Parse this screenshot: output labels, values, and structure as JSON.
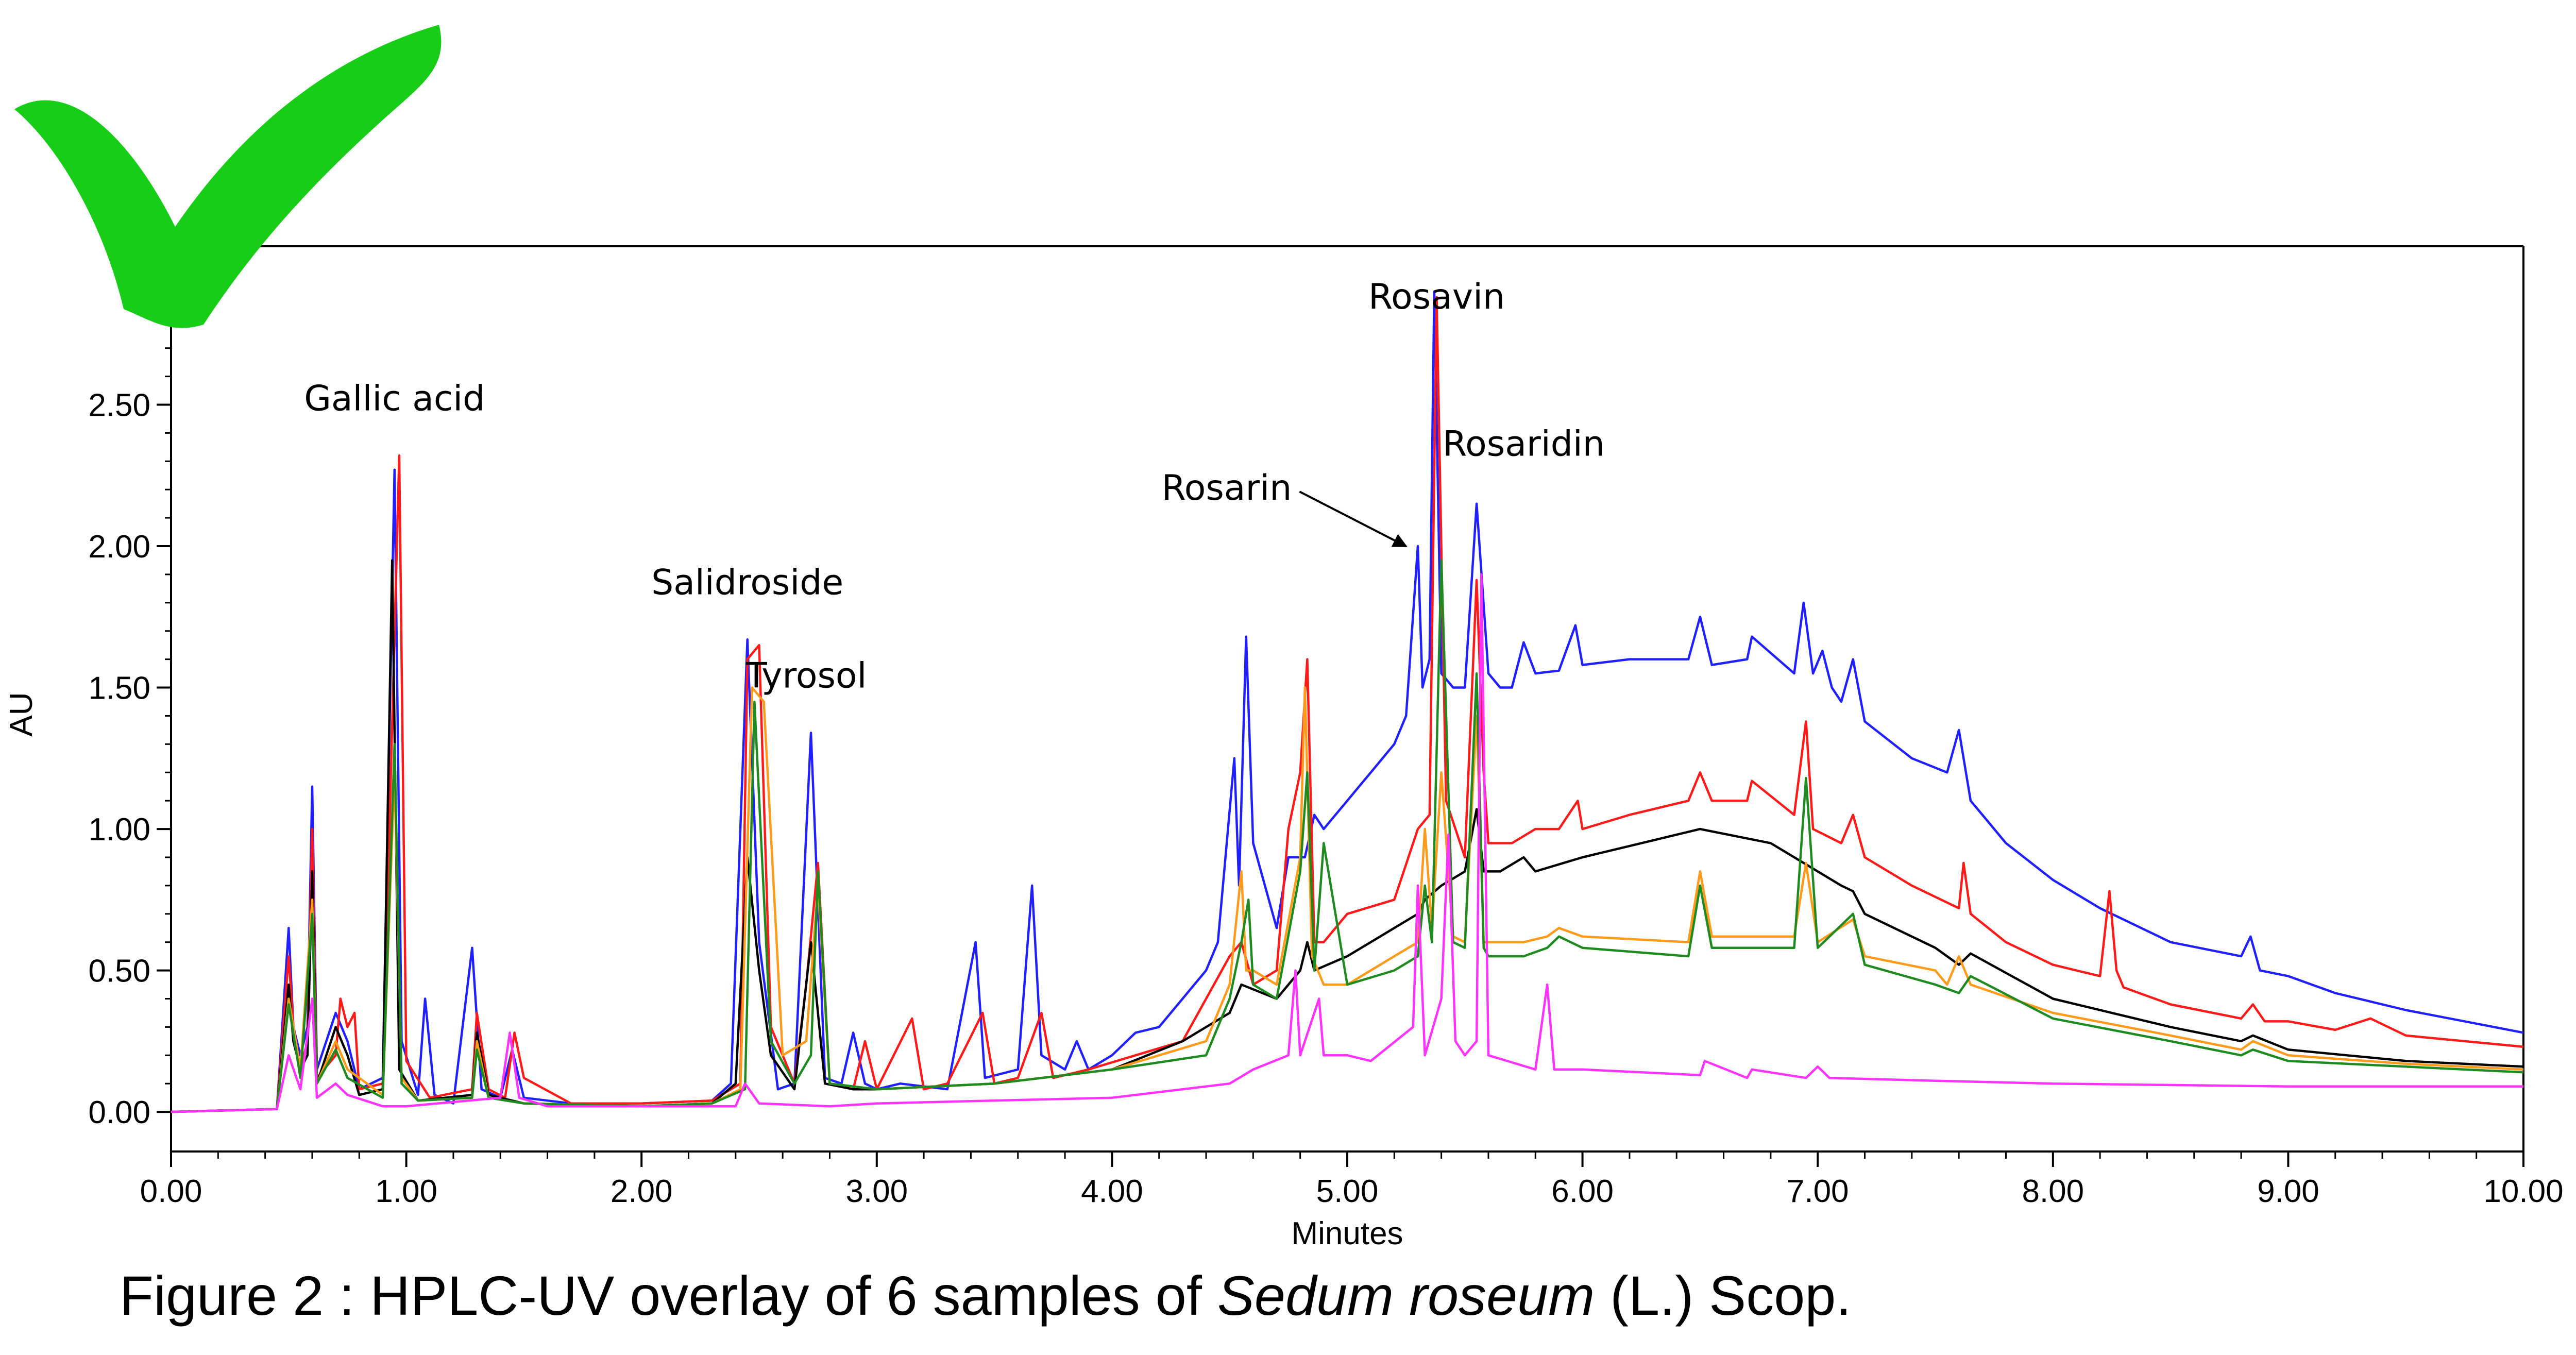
{
  "caption": {
    "prefix": "Figure 2 : HPLC-UV overlay of 6 samples of ",
    "species": "Sedum roseum",
    "suffix": " (L.) Scop."
  },
  "colors": {
    "checkmark": "#17cd17",
    "axis": "#000000",
    "arrow": "#000000"
  },
  "icons": {
    "checkmark": "checkmark-icon"
  },
  "chart_data": {
    "type": "line",
    "title": "",
    "xlabel": "Minutes",
    "ylabel": "AU",
    "xlim": [
      0,
      10
    ],
    "ylim": [
      -0.14,
      3.06
    ],
    "grid": false,
    "legend": "none",
    "x_ticks": [
      "0.00",
      "1.00",
      "2.00",
      "3.00",
      "4.00",
      "5.00",
      "6.00",
      "7.00",
      "8.00",
      "9.00",
      "10.00"
    ],
    "y_ticks": [
      "0.00",
      "0.50",
      "1.00",
      "1.50",
      "2.00",
      "2.50"
    ],
    "annotations": [
      {
        "text": "Gallic acid",
        "x": 0.95,
        "y": 2.48
      },
      {
        "text": "Salidroside",
        "x": 2.45,
        "y": 1.83
      },
      {
        "text": "Tyrosol",
        "x": 2.7,
        "y": 1.5
      },
      {
        "text": "Rosarin",
        "x": 5.29,
        "y": 2.2,
        "arrow_to": [
          5.29,
          2.01
        ]
      },
      {
        "text": "Rosavin",
        "x": 5.38,
        "y": 2.84
      },
      {
        "text": "Rosaridin",
        "x": 5.75,
        "y": 2.32
      }
    ],
    "series": [
      {
        "color": "#2020ff",
        "x": [
          0,
          0.45,
          0.5,
          0.52,
          0.55,
          0.58,
          0.6,
          0.62,
          0.7,
          0.75,
          0.8,
          0.9,
          0.95,
          0.98,
          1.05,
          1.08,
          1.12,
          1.2,
          1.28,
          1.32,
          1.4,
          1.45,
          1.5,
          1.7,
          2.0,
          2.3,
          2.38,
          2.45,
          2.5,
          2.58,
          2.65,
          2.72,
          2.78,
          2.85,
          2.9,
          2.95,
          3.0,
          3.1,
          3.3,
          3.42,
          3.46,
          3.6,
          3.66,
          3.7,
          3.8,
          3.85,
          3.9,
          4.0,
          4.1,
          4.2,
          4.4,
          4.45,
          4.52,
          4.54,
          4.57,
          4.6,
          4.7,
          4.75,
          4.82,
          4.86,
          4.9,
          5.0,
          5.1,
          5.2,
          5.25,
          5.3,
          5.32,
          5.35,
          5.37,
          5.4,
          5.45,
          5.5,
          5.55,
          5.6,
          5.65,
          5.7,
          5.75,
          5.8,
          5.9,
          5.97,
          6.0,
          6.2,
          6.45,
          6.5,
          6.55,
          6.7,
          6.72,
          6.9,
          6.94,
          6.98,
          7.02,
          7.06,
          7.1,
          7.15,
          7.2,
          7.4,
          7.55,
          7.6,
          7.65,
          7.8,
          8.0,
          8.2,
          8.5,
          8.8,
          8.84,
          8.88,
          9.0,
          9.2,
          9.5,
          10.0
        ],
        "y": [
          0,
          0.01,
          0.65,
          0.3,
          0.2,
          0.3,
          1.15,
          0.15,
          0.35,
          0.25,
          0.08,
          0.12,
          2.27,
          0.25,
          0.06,
          0.4,
          0.06,
          0.03,
          0.58,
          0.08,
          0.05,
          0.22,
          0.05,
          0.03,
          0.03,
          0.04,
          0.1,
          1.67,
          0.6,
          0.08,
          0.1,
          1.34,
          0.12,
          0.1,
          0.28,
          0.1,
          0.08,
          0.1,
          0.08,
          0.6,
          0.12,
          0.15,
          0.8,
          0.2,
          0.15,
          0.25,
          0.15,
          0.2,
          0.28,
          0.3,
          0.5,
          0.6,
          1.25,
          0.8,
          1.68,
          0.95,
          0.65,
          0.9,
          0.9,
          1.05,
          1.0,
          1.1,
          1.2,
          1.3,
          1.4,
          2.0,
          1.5,
          1.6,
          2.9,
          1.55,
          1.5,
          1.5,
          2.15,
          1.55,
          1.5,
          1.5,
          1.66,
          1.55,
          1.56,
          1.72,
          1.58,
          1.6,
          1.6,
          1.75,
          1.58,
          1.6,
          1.68,
          1.55,
          1.8,
          1.55,
          1.63,
          1.5,
          1.45,
          1.6,
          1.38,
          1.25,
          1.2,
          1.35,
          1.1,
          0.95,
          0.82,
          0.72,
          0.6,
          0.55,
          0.62,
          0.5,
          0.48,
          0.42,
          0.36,
          0.28
        ]
      },
      {
        "color": "#ff1a1a",
        "x": [
          0,
          0.45,
          0.5,
          0.52,
          0.55,
          0.58,
          0.6,
          0.62,
          0.7,
          0.72,
          0.75,
          0.78,
          0.8,
          0.9,
          0.97,
          1.0,
          1.1,
          1.28,
          1.3,
          1.35,
          1.42,
          1.46,
          1.5,
          1.7,
          2.0,
          2.3,
          2.42,
          2.45,
          2.5,
          2.55,
          2.65,
          2.7,
          2.75,
          2.8,
          2.9,
          2.95,
          3.0,
          3.15,
          3.2,
          3.3,
          3.45,
          3.5,
          3.6,
          3.7,
          3.75,
          3.9,
          4.1,
          4.3,
          4.5,
          4.55,
          4.6,
          4.7,
          4.75,
          4.8,
          4.83,
          4.86,
          4.9,
          5.0,
          5.2,
          5.3,
          5.35,
          5.38,
          5.42,
          5.5,
          5.55,
          5.58,
          5.6,
          5.7,
          5.8,
          5.9,
          5.98,
          6.0,
          6.2,
          6.45,
          6.5,
          6.55,
          6.7,
          6.72,
          6.9,
          6.95,
          6.98,
          7.1,
          7.15,
          7.2,
          7.4,
          7.6,
          7.62,
          7.65,
          7.8,
          8.0,
          8.2,
          8.24,
          8.27,
          8.3,
          8.5,
          8.8,
          8.85,
          8.9,
          9.0,
          9.2,
          9.35,
          9.5,
          10.0
        ],
        "y": [
          0,
          0.01,
          0.55,
          0.3,
          0.15,
          0.25,
          1.0,
          0.12,
          0.2,
          0.4,
          0.3,
          0.35,
          0.08,
          0.1,
          2.32,
          0.18,
          0.05,
          0.08,
          0.35,
          0.08,
          0.05,
          0.28,
          0.12,
          0.03,
          0.03,
          0.04,
          0.1,
          1.6,
          1.65,
          0.3,
          0.1,
          0.45,
          0.88,
          0.1,
          0.08,
          0.25,
          0.08,
          0.33,
          0.08,
          0.1,
          0.35,
          0.1,
          0.12,
          0.35,
          0.12,
          0.15,
          0.2,
          0.25,
          0.55,
          0.6,
          0.45,
          0.5,
          1.0,
          1.2,
          1.6,
          0.6,
          0.6,
          0.7,
          0.75,
          1.0,
          1.05,
          2.88,
          1.1,
          0.9,
          1.88,
          1.2,
          0.95,
          0.95,
          1.0,
          1.0,
          1.1,
          1.0,
          1.05,
          1.1,
          1.2,
          1.1,
          1.1,
          1.17,
          1.05,
          1.38,
          1.0,
          0.95,
          1.05,
          0.9,
          0.8,
          0.72,
          0.88,
          0.7,
          0.6,
          0.52,
          0.48,
          0.78,
          0.5,
          0.44,
          0.38,
          0.33,
          0.38,
          0.32,
          0.32,
          0.29,
          0.33,
          0.27,
          0.23
        ]
      },
      {
        "color": "#000000",
        "x": [
          0,
          0.45,
          0.5,
          0.52,
          0.55,
          0.58,
          0.6,
          0.62,
          0.7,
          0.75,
          0.8,
          0.9,
          0.94,
          0.97,
          1.05,
          1.28,
          1.3,
          1.35,
          1.5,
          2.0,
          2.3,
          2.4,
          2.45,
          2.5,
          2.55,
          2.65,
          2.72,
          2.78,
          2.9,
          3.0,
          3.5,
          4.0,
          4.3,
          4.5,
          4.55,
          4.7,
          4.8,
          4.83,
          4.86,
          5.0,
          5.2,
          5.3,
          5.33,
          5.4,
          5.5,
          5.55,
          5.58,
          5.65,
          5.75,
          5.8,
          6.0,
          6.5,
          6.8,
          7.1,
          7.15,
          7.2,
          7.5,
          7.6,
          7.65,
          8.0,
          8.5,
          8.8,
          8.85,
          9.0,
          9.5,
          10.0
        ],
        "y": [
          0,
          0.01,
          0.45,
          0.25,
          0.15,
          0.2,
          0.85,
          0.1,
          0.3,
          0.2,
          0.06,
          0.08,
          1.95,
          0.15,
          0.04,
          0.06,
          0.28,
          0.06,
          0.03,
          0.02,
          0.03,
          0.1,
          0.9,
          0.5,
          0.2,
          0.08,
          0.6,
          0.1,
          0.08,
          0.08,
          0.1,
          0.15,
          0.25,
          0.35,
          0.45,
          0.4,
          0.5,
          0.6,
          0.5,
          0.55,
          0.65,
          0.7,
          0.75,
          0.8,
          0.85,
          1.07,
          0.85,
          0.85,
          0.9,
          0.85,
          0.9,
          1.0,
          0.95,
          0.8,
          0.78,
          0.7,
          0.58,
          0.52,
          0.56,
          0.4,
          0.3,
          0.25,
          0.27,
          0.22,
          0.18,
          0.16
        ]
      },
      {
        "color": "#ff9a1a",
        "x": [
          0,
          0.45,
          0.5,
          0.55,
          0.6,
          0.62,
          0.7,
          0.75,
          0.9,
          0.95,
          0.98,
          1.05,
          1.28,
          1.3,
          1.35,
          1.5,
          2.0,
          2.3,
          2.42,
          2.47,
          2.52,
          2.6,
          2.7,
          2.75,
          2.8,
          3.0,
          3.5,
          4.0,
          4.4,
          4.5,
          4.55,
          4.57,
          4.6,
          4.7,
          4.8,
          4.82,
          4.85,
          4.9,
          5.0,
          5.2,
          5.3,
          5.33,
          5.36,
          5.4,
          5.45,
          5.5,
          5.55,
          5.58,
          5.6,
          5.75,
          5.85,
          5.9,
          6.0,
          6.45,
          6.5,
          6.55,
          6.9,
          6.95,
          7.0,
          7.15,
          7.2,
          7.5,
          7.55,
          7.6,
          7.65,
          8.0,
          8.5,
          8.8,
          8.85,
          9.0,
          9.5,
          10.0
        ],
        "y": [
          0,
          0.01,
          0.4,
          0.15,
          0.75,
          0.1,
          0.25,
          0.15,
          0.06,
          1.2,
          0.12,
          0.04,
          0.05,
          0.25,
          0.05,
          0.03,
          0.02,
          0.03,
          0.08,
          1.5,
          1.45,
          0.2,
          0.25,
          0.8,
          0.1,
          0.08,
          0.1,
          0.15,
          0.25,
          0.45,
          0.85,
          0.5,
          0.5,
          0.45,
          0.9,
          1.5,
          0.55,
          0.45,
          0.45,
          0.55,
          0.6,
          1.0,
          0.65,
          1.2,
          0.62,
          0.6,
          1.4,
          0.6,
          0.6,
          0.6,
          0.62,
          0.65,
          0.62,
          0.6,
          0.85,
          0.62,
          0.62,
          0.88,
          0.6,
          0.68,
          0.55,
          0.5,
          0.45,
          0.55,
          0.45,
          0.35,
          0.27,
          0.22,
          0.25,
          0.2,
          0.17,
          0.15
        ]
      },
      {
        "color": "#1f8a1f",
        "x": [
          0,
          0.45,
          0.5,
          0.55,
          0.6,
          0.62,
          0.7,
          0.75,
          0.9,
          0.95,
          0.98,
          1.05,
          1.28,
          1.3,
          1.35,
          1.5,
          2.0,
          2.3,
          2.44,
          2.48,
          2.55,
          2.65,
          2.72,
          2.75,
          2.8,
          3.0,
          3.5,
          4.0,
          4.4,
          4.5,
          4.55,
          4.58,
          4.6,
          4.7,
          4.8,
          4.83,
          4.86,
          4.9,
          5.0,
          5.2,
          5.3,
          5.33,
          5.36,
          5.4,
          5.45,
          5.5,
          5.55,
          5.58,
          5.6,
          5.75,
          5.85,
          5.9,
          6.0,
          6.45,
          6.5,
          6.55,
          6.9,
          6.95,
          7.0,
          7.15,
          7.2,
          7.5,
          7.6,
          7.65,
          8.0,
          8.5,
          8.8,
          8.85,
          9.0,
          9.5,
          10.0
        ],
        "y": [
          0,
          0.01,
          0.38,
          0.12,
          0.7,
          0.1,
          0.22,
          0.12,
          0.05,
          1.3,
          0.1,
          0.04,
          0.05,
          0.22,
          0.05,
          0.03,
          0.02,
          0.03,
          0.08,
          1.45,
          0.25,
          0.1,
          0.2,
          0.85,
          0.1,
          0.08,
          0.1,
          0.15,
          0.2,
          0.4,
          0.6,
          0.75,
          0.45,
          0.4,
          0.85,
          1.2,
          0.5,
          0.95,
          0.45,
          0.5,
          0.55,
          0.8,
          0.6,
          1.95,
          0.6,
          0.58,
          1.55,
          0.58,
          0.55,
          0.55,
          0.58,
          0.62,
          0.58,
          0.55,
          0.8,
          0.58,
          0.58,
          1.18,
          0.58,
          0.7,
          0.52,
          0.45,
          0.42,
          0.48,
          0.33,
          0.25,
          0.2,
          0.22,
          0.18,
          0.16,
          0.14
        ]
      },
      {
        "color": "#ff33ff",
        "x": [
          0,
          0.45,
          0.5,
          0.55,
          0.6,
          0.62,
          0.7,
          0.75,
          0.9,
          1.0,
          1.4,
          1.44,
          1.48,
          1.6,
          2.0,
          2.4,
          2.44,
          2.5,
          2.8,
          3.0,
          4.0,
          4.5,
          4.6,
          4.75,
          4.78,
          4.8,
          4.88,
          4.9,
          4.95,
          5.0,
          5.1,
          5.28,
          5.3,
          5.33,
          5.4,
          5.43,
          5.46,
          5.5,
          5.55,
          5.57,
          5.6,
          5.8,
          5.85,
          5.88,
          6.0,
          6.5,
          6.52,
          6.7,
          6.72,
          6.95,
          7.0,
          7.05,
          7.5,
          8.0,
          9.0,
          10.0
        ],
        "y": [
          0,
          0.01,
          0.2,
          0.08,
          0.4,
          0.05,
          0.1,
          0.06,
          0.02,
          0.02,
          0.05,
          0.28,
          0.05,
          0.02,
          0.02,
          0.02,
          0.1,
          0.03,
          0.02,
          0.03,
          0.05,
          0.1,
          0.15,
          0.2,
          0.5,
          0.2,
          0.4,
          0.2,
          0.2,
          0.2,
          0.18,
          0.3,
          0.8,
          0.2,
          0.4,
          0.98,
          0.25,
          0.2,
          0.25,
          1.9,
          0.2,
          0.15,
          0.45,
          0.15,
          0.15,
          0.13,
          0.18,
          0.12,
          0.15,
          0.12,
          0.16,
          0.12,
          0.11,
          0.1,
          0.09,
          0.09
        ]
      }
    ]
  }
}
